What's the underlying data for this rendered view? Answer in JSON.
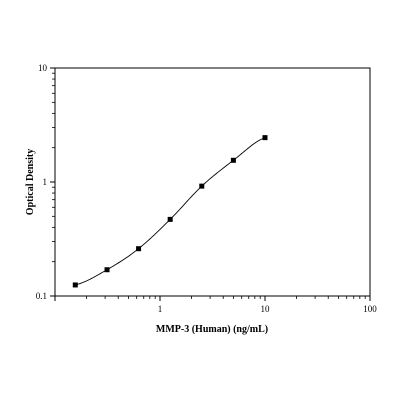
{
  "chart_data": {
    "type": "scatter",
    "title": "",
    "xlabel": "MMP-3 (Human) (ng/mL)",
    "ylabel": "Optical Density",
    "x_scale": "log",
    "y_scale": "log",
    "xlim": [
      0.1,
      100
    ],
    "ylim": [
      0.1,
      10
    ],
    "x_ticks": [
      "1",
      "10",
      "100"
    ],
    "y_ticks": [
      "0.1",
      "1",
      "10"
    ],
    "grid": false,
    "legend": "none",
    "series": [
      {
        "x": [
          0.156,
          0.313,
          0.625,
          1.25,
          2.5,
          5,
          10
        ],
        "y": [
          0.125,
          0.17,
          0.26,
          0.47,
          0.92,
          1.55,
          2.45
        ]
      }
    ],
    "fit_curve": true,
    "colors": {
      "axis": "#000000",
      "marker": "#000000",
      "curve": "#000000"
    }
  }
}
